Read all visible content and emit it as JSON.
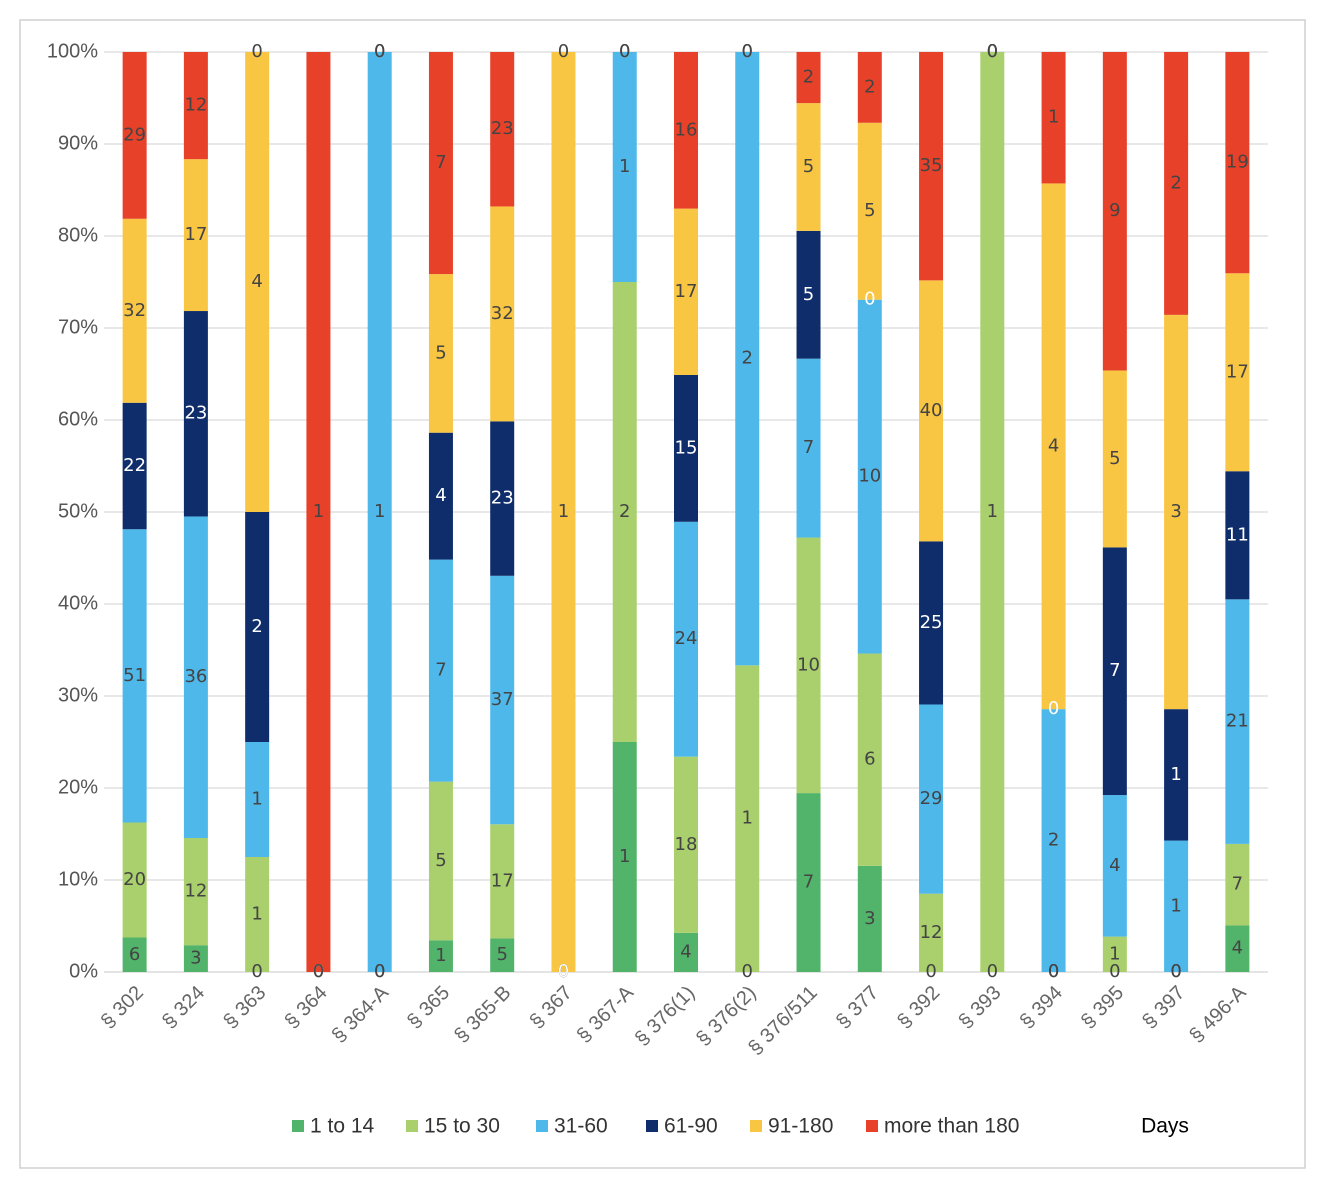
{
  "chart_data": {
    "type": "bar",
    "stack": "percent",
    "categories": [
      "§ 302",
      "§ 324",
      "§ 363",
      "§ 364",
      "§ 364-A",
      "§ 365",
      "§ 365-B",
      "§ 367",
      "§ 367-A",
      "§ 376(1)",
      "§ 376(2)",
      "§ 376/511",
      "§ 377",
      "§ 392",
      "§ 393",
      "§ 394",
      "§ 395",
      "§ 397",
      "§ 496-A"
    ],
    "series": [
      {
        "name": "1 to 14",
        "color": "#52b36a",
        "values": [
          6,
          3,
          0,
          0,
          0,
          1,
          5,
          0,
          1,
          4,
          0,
          7,
          3,
          0,
          0,
          0,
          0,
          0,
          4
        ]
      },
      {
        "name": "15 to 30",
        "color": "#a9d06c",
        "values": [
          20,
          12,
          1,
          0,
          0,
          5,
          17,
          0,
          2,
          18,
          1,
          10,
          6,
          12,
          1,
          0,
          1,
          0,
          7
        ]
      },
      {
        "name": "31-60",
        "color": "#4fb8ea",
        "values": [
          51,
          36,
          1,
          0,
          1,
          7,
          37,
          0,
          1,
          24,
          2,
          7,
          10,
          29,
          0,
          2,
          4,
          1,
          21
        ]
      },
      {
        "name": "61-90",
        "color": "#0f2d6b",
        "values": [
          22,
          23,
          2,
          0,
          0,
          4,
          23,
          0,
          0,
          15,
          0,
          5,
          0,
          25,
          0,
          0,
          7,
          1,
          11
        ]
      },
      {
        "name": "91-180",
        "color": "#f8c643",
        "values": [
          32,
          17,
          4,
          0,
          0,
          5,
          32,
          1,
          0,
          17,
          0,
          5,
          5,
          40,
          0,
          4,
          5,
          3,
          17
        ]
      },
      {
        "name": "more than 180",
        "color": "#e8412a",
        "values": [
          29,
          12,
          0,
          1,
          0,
          7,
          23,
          0,
          0,
          16,
          0,
          2,
          2,
          35,
          0,
          1,
          9,
          2,
          19
        ]
      }
    ],
    "legend_title": "Days",
    "ylim": [
      0,
      100
    ],
    "yticks": [
      {
        "value": 0,
        "label": "0%"
      },
      {
        "value": 10,
        "label": "10%"
      },
      {
        "value": 20,
        "label": "20%"
      },
      {
        "value": 30,
        "label": "30%"
      },
      {
        "value": 40,
        "label": "40%"
      },
      {
        "value": 50,
        "label": "50%"
      },
      {
        "value": 60,
        "label": "60%"
      },
      {
        "value": 70,
        "label": "70%"
      },
      {
        "value": 80,
        "label": "80%"
      },
      {
        "value": 90,
        "label": "90%"
      },
      {
        "value": 100,
        "label": "100%"
      }
    ],
    "grid": true
  }
}
